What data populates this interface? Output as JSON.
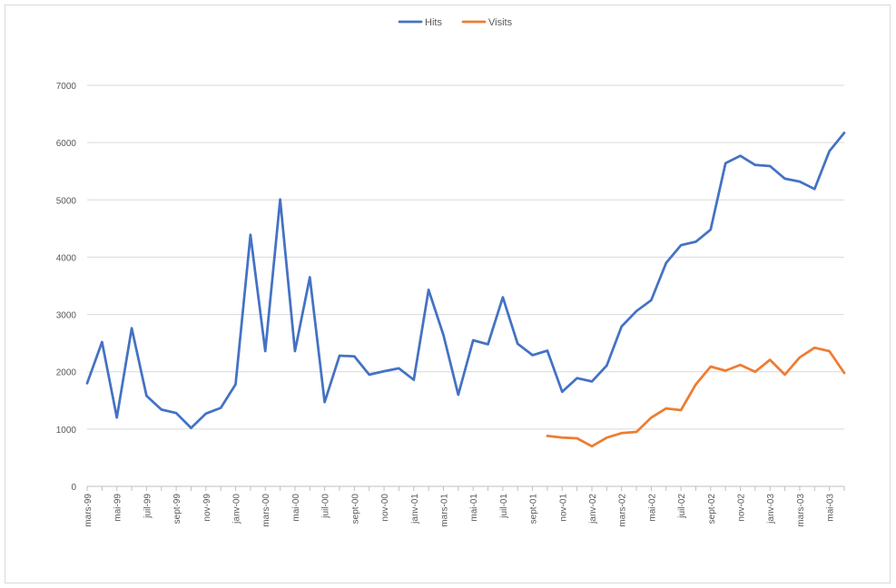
{
  "chart_data": {
    "type": "line",
    "title": "",
    "xlabel": "",
    "ylabel": "",
    "ylim": [
      0,
      7000
    ],
    "yticks": [
      0,
      1000,
      2000,
      3000,
      4000,
      5000,
      6000,
      7000
    ],
    "grid": true,
    "legend_position": "top-center",
    "categories": [
      "mars-99",
      "avr-99",
      "mai-99",
      "juin-99",
      "juil-99",
      "août-99",
      "sept-99",
      "oct-99",
      "nov-99",
      "déc-99",
      "janv-00",
      "févr-00",
      "mars-00",
      "avr-00",
      "mai-00",
      "juin-00",
      "juil-00",
      "août-00",
      "sept-00",
      "oct-00",
      "nov-00",
      "déc-00",
      "janv-01",
      "févr-01",
      "mars-01",
      "avr-01",
      "mai-01",
      "juin-01",
      "juil-01",
      "août-01",
      "sept-01",
      "oct-01",
      "nov-01",
      "déc-01",
      "janv-02",
      "févr-02",
      "mars-02",
      "avr-02",
      "mai-02",
      "juin-02",
      "juil-02",
      "août-02",
      "sept-02",
      "oct-02",
      "nov-02",
      "déc-02",
      "janv-03",
      "févr-03",
      "mars-03",
      "avr-03",
      "mai-03",
      "juin-03"
    ],
    "xtick_labels": [
      "mars-99",
      "",
      "mai-99",
      "",
      "juil-99",
      "",
      "sept-99",
      "",
      "nov-99",
      "",
      "janv-00",
      "",
      "mars-00",
      "",
      "mai-00",
      "",
      "juil-00",
      "",
      "sept-00",
      "",
      "nov-00",
      "",
      "janv-01",
      "",
      "mars-01",
      "",
      "mai-01",
      "",
      "juil-01",
      "",
      "sept-01",
      "",
      "nov-01",
      "",
      "janv-02",
      "",
      "mars-02",
      "",
      "mai-02",
      "",
      "juil-02",
      "",
      "sept-02",
      "",
      "nov-02",
      "",
      "janv-03",
      "",
      "mars-03",
      "",
      "mai-03",
      ""
    ],
    "series": [
      {
        "name": "Hits",
        "color": "#4472c4",
        "values": [
          1800,
          2520,
          1200,
          2760,
          1580,
          1340,
          1280,
          1020,
          1270,
          1370,
          1780,
          4390,
          2360,
          5010,
          2360,
          3650,
          1470,
          2280,
          2270,
          1950,
          2010,
          2060,
          1860,
          3430,
          2640,
          1600,
          2550,
          2480,
          3300,
          2490,
          2290,
          2370,
          1650,
          1890,
          1830,
          2110,
          2790,
          3060,
          3250,
          3900,
          4210,
          4270,
          4480,
          5640,
          5770,
          5610,
          5590,
          5370,
          5320,
          5190,
          5850,
          6170
        ]
      },
      {
        "name": "Visits",
        "color": "#ed7d31",
        "values": [
          null,
          null,
          null,
          null,
          null,
          null,
          null,
          null,
          null,
          null,
          null,
          null,
          null,
          null,
          null,
          null,
          null,
          null,
          null,
          null,
          null,
          null,
          null,
          null,
          null,
          null,
          null,
          null,
          null,
          null,
          null,
          880,
          850,
          840,
          700,
          850,
          930,
          950,
          1200,
          1360,
          1330,
          1780,
          2090,
          2020,
          2120,
          2000,
          2210,
          1950,
          2250,
          2420,
          2360,
          1980
        ]
      }
    ]
  }
}
